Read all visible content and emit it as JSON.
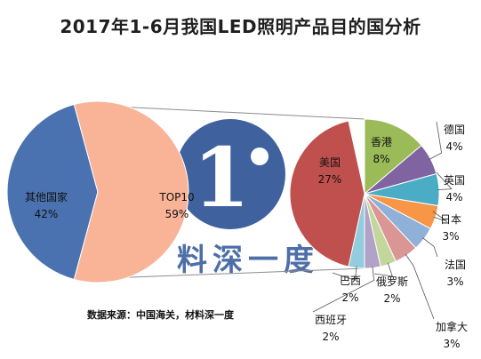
{
  "title": "2017年1-6月我国LED照明产品目的国分析",
  "source": "数据来源：中国海关，材料深一度",
  "watermark": {
    "text": "料深一度",
    "logo_glyph": "1",
    "logo_color": "#2f5597",
    "text_color": "#2f5597"
  },
  "colors": {
    "others": "#4a72b0",
    "top10": "#f9b498",
    "usa": "#c0504d",
    "hongkong": "#9bbb59",
    "germany": "#8064a2",
    "uk": "#4bacc6",
    "japan": "#f79646",
    "france": "#8fb0d8",
    "canada": "#d99694",
    "russia": "#c3d69b",
    "spain": "#b3a2c7",
    "brazil": "#93cddd"
  },
  "chart_data": [
    {
      "type": "pie",
      "title": "",
      "slices": [
        {
          "label": "其他国家",
          "value": 42,
          "value_label": "42%",
          "color_key": "others"
        },
        {
          "label": "TOP10",
          "value": 59,
          "value_label": "59%",
          "color_key": "top10"
        }
      ]
    },
    {
      "type": "pie",
      "title": "",
      "slices": [
        {
          "label": "美国",
          "value": 27,
          "value_label": "27%",
          "color_key": "usa"
        },
        {
          "label": "香港",
          "value": 8,
          "value_label": "8%",
          "color_key": "hongkong"
        },
        {
          "label": "德国",
          "value": 4,
          "value_label": "4%",
          "color_key": "germany"
        },
        {
          "label": "英国",
          "value": 4,
          "value_label": "4%",
          "color_key": "uk"
        },
        {
          "label": "日本",
          "value": 3,
          "value_label": "3%",
          "color_key": "japan"
        },
        {
          "label": "法国",
          "value": 3,
          "value_label": "3%",
          "color_key": "france"
        },
        {
          "label": "加拿大",
          "value": 3,
          "value_label": "3%",
          "color_key": "canada"
        },
        {
          "label": "俄罗斯",
          "value": 2,
          "value_label": "2%",
          "color_key": "russia"
        },
        {
          "label": "西班牙",
          "value": 2,
          "value_label": "2%",
          "color_key": "spain"
        },
        {
          "label": "巴西",
          "value": 2,
          "value_label": "2%",
          "color_key": "brazil"
        }
      ]
    }
  ]
}
